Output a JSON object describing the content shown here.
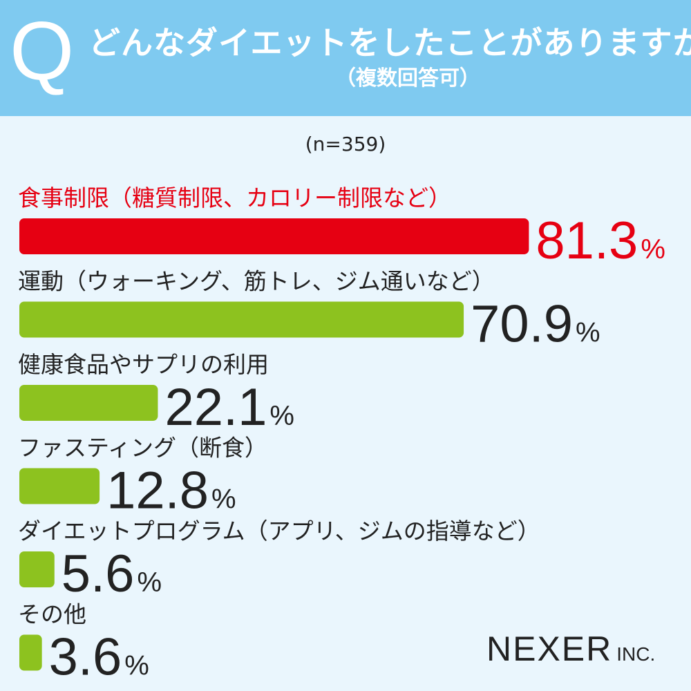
{
  "header": {
    "q_mark": "Q",
    "title": "どんなダイエットをしたことがありますか?",
    "subtitle": "（複数回答可）"
  },
  "sample_size": "(n=359)",
  "logo": {
    "main": "NEXER",
    "suffix": "INC."
  },
  "colors": {
    "highlight": "#e60012",
    "bar": "#8dc21f",
    "text": "#222222",
    "header": "#7fcaf0",
    "background": "#eaf6fd"
  },
  "chart_data": {
    "type": "bar",
    "orientation": "horizontal",
    "categories": [
      "食事制限（糖質制限、カロリー制限など）",
      "運動（ウォーキング、筋トレ、ジム通いなど）",
      "健康食品やサプリの利用",
      "ファスティング（断食）",
      "ダイエットプログラム（アプリ、ジムの指導など）",
      "その他"
    ],
    "values": [
      81.3,
      70.9,
      22.1,
      12.8,
      5.6,
      3.6
    ],
    "value_labels": [
      "81.3",
      "70.9",
      "22.1",
      "12.8",
      "5.6",
      "3.6"
    ],
    "unit": "%",
    "xlim": [
      0,
      100
    ],
    "highlight_index": 0
  }
}
